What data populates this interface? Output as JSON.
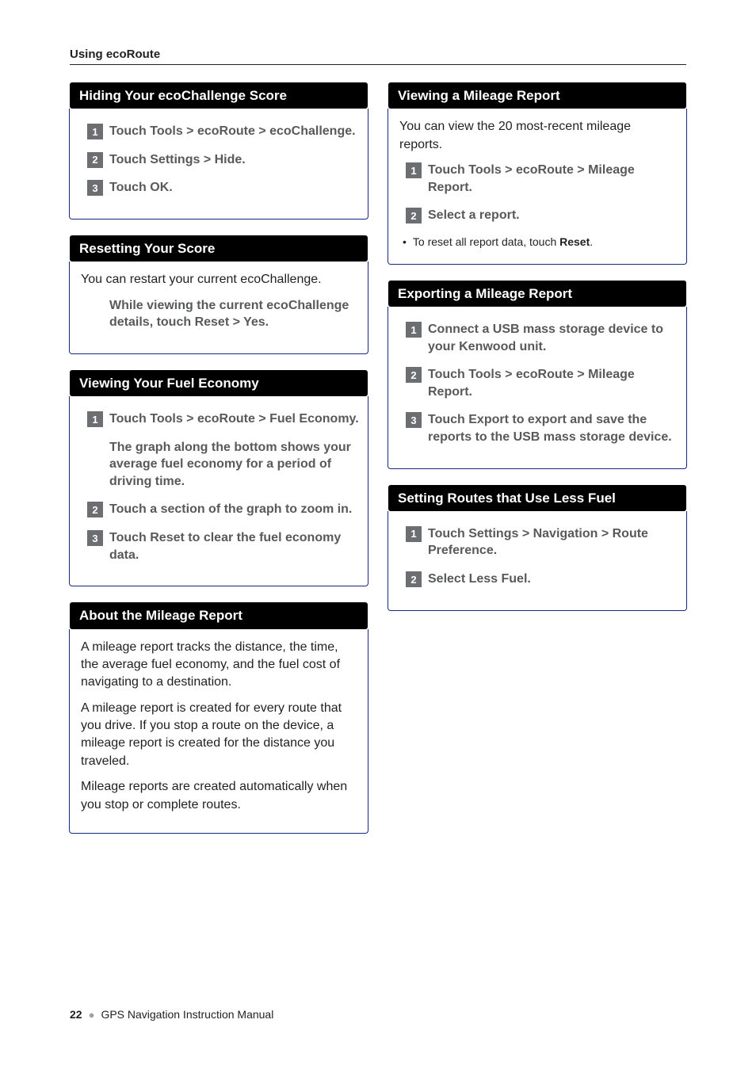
{
  "running_header": "Using ecoRoute",
  "left": {
    "hiding": {
      "title": "Hiding Your ecoChallenge Score",
      "steps": [
        "Touch Tools > ecoRoute > ecoChallenge.",
        "Touch Settings > Hide.",
        "Touch OK."
      ]
    },
    "resetting": {
      "title": "Resetting Your Score",
      "intro": "You can restart your current ecoChallenge.",
      "step_unnum": "While viewing the current ecoChallenge details, touch Reset > Yes."
    },
    "fuel_economy": {
      "title": "Viewing Your Fuel Economy",
      "step1": "Touch Tools > ecoRoute > Fuel Economy.",
      "note_unnum": "The graph along the bottom shows your average fuel economy for a period of driving time.",
      "step2": "Touch a section of the graph to zoom in.",
      "step3": "Touch Reset to clear the fuel economy data."
    },
    "about": {
      "title": "About the Mileage Report",
      "p1": "A mileage report tracks the distance, the time, the average fuel economy, and the fuel cost of navigating to a destination.",
      "p2": "A mileage report is created for every route that you drive. If you stop a route on the device, a mileage report is created for the distance you traveled.",
      "p3": "Mileage reports are created automatically when you stop or complete routes."
    }
  },
  "right": {
    "viewing": {
      "title": "Viewing a Mileage Report",
      "intro": "You can view the 20 most-recent mileage reports.",
      "step1": "Touch Tools > ecoRoute > Mileage Report.",
      "step2": "Select a report.",
      "bullet_pre": "To reset all report data, touch ",
      "bullet_bold": "Reset",
      "bullet_post": "."
    },
    "exporting": {
      "title": "Exporting a Mileage Report",
      "step1": "Connect a USB mass storage device to your Kenwood unit.",
      "step2": "Touch Tools > ecoRoute > Mileage Report.",
      "step3": "Touch Export to export and save the reports to the USB mass storage device."
    },
    "setting_routes": {
      "title": "Setting Routes that Use Less Fuel",
      "step1": "Touch Settings > Navigation > Route Preference.",
      "step2": "Select Less Fuel."
    }
  },
  "footer": {
    "page": "22",
    "title": "GPS Navigation Instruction Manual"
  }
}
